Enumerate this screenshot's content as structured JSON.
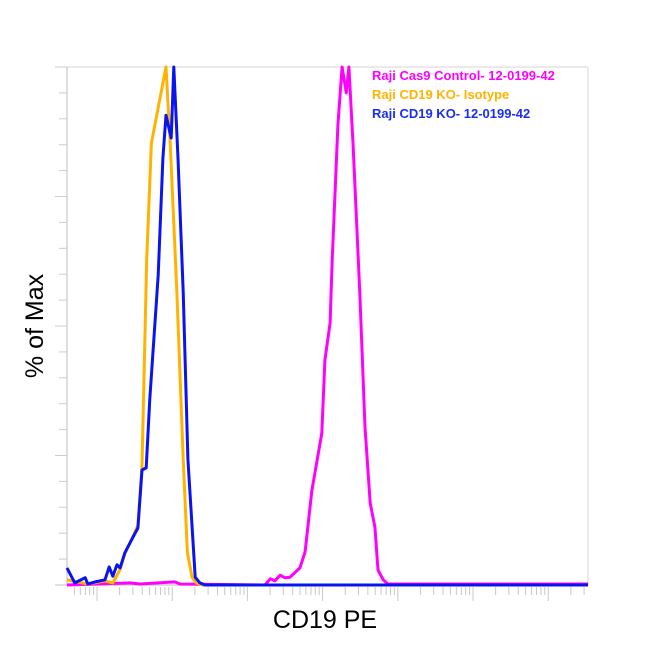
{
  "chart_data": {
    "type": "line",
    "title": "",
    "xlabel": "CD19 PE",
    "ylabel": "% of Max",
    "x_scale": "log",
    "x_units": "fraction of axis range (axis has no printed tick labels)",
    "xlim": [
      0,
      1
    ],
    "ylim": [
      0,
      100
    ],
    "grid": false,
    "legend_position": "top-right",
    "series": [
      {
        "name": "Raji Cas9 Control- 12-0199-42",
        "color": "#ff00ff",
        "points": [
          [
            0,
            0
          ],
          [
            0.121,
            0.4
          ],
          [
            0.14,
            0.2
          ],
          [
            0.207,
            0.6
          ],
          [
            0.217,
            0.2
          ],
          [
            0.38,
            0
          ],
          [
            0.39,
            1.2
          ],
          [
            0.399,
            0.8
          ],
          [
            0.409,
            1.9
          ],
          [
            0.418,
            1.4
          ],
          [
            0.428,
            1.5
          ],
          [
            0.447,
            3.3
          ],
          [
            0.457,
            6.4
          ],
          [
            0.47,
            18.3
          ],
          [
            0.489,
            29.3
          ],
          [
            0.495,
            43.4
          ],
          [
            0.505,
            50.6
          ],
          [
            0.509,
            62.7
          ],
          [
            0.52,
            88.8
          ],
          [
            0.528,
            100
          ],
          [
            0.536,
            95
          ],
          [
            0.541,
            100
          ],
          [
            0.549,
            85.3
          ],
          [
            0.562,
            56.4
          ],
          [
            0.572,
            30.5
          ],
          [
            0.582,
            15.8
          ],
          [
            0.591,
            11.2
          ],
          [
            0.597,
            2.9
          ],
          [
            0.607,
            1.0
          ],
          [
            0.616,
            0.2
          ],
          [
            1,
            0.2
          ]
        ]
      },
      {
        "name": "Raji CD19 KO- Isotype",
        "color": "#ffb300",
        "points": [
          [
            0,
            1
          ],
          [
            0.04,
            0.2
          ],
          [
            0.073,
            0.8
          ],
          [
            0.088,
            0.4
          ],
          [
            0.102,
            3
          ],
          [
            0.111,
            6
          ],
          [
            0.127,
            9.5
          ],
          [
            0.136,
            11.5
          ],
          [
            0.144,
            23
          ],
          [
            0.153,
            62.9
          ],
          [
            0.162,
            85.3
          ],
          [
            0.19,
            100
          ],
          [
            0.198,
            85.3
          ],
          [
            0.211,
            56.4
          ],
          [
            0.223,
            24.3
          ],
          [
            0.231,
            6.2
          ],
          [
            0.24,
            1.5
          ],
          [
            0.248,
            0.4
          ],
          [
            0.26,
            0
          ],
          [
            1,
            0
          ]
        ]
      },
      {
        "name": "Raji CD19 KO- 12-0199-42",
        "color": "#0a14f0",
        "points": [
          [
            0,
            3.3
          ],
          [
            0.015,
            0.4
          ],
          [
            0.035,
            1.4
          ],
          [
            0.04,
            0.2
          ],
          [
            0.054,
            0.6
          ],
          [
            0.073,
            1.0
          ],
          [
            0.081,
            3.5
          ],
          [
            0.088,
            1.7
          ],
          [
            0.096,
            3.9
          ],
          [
            0.102,
            3.3
          ],
          [
            0.111,
            6.2
          ],
          [
            0.127,
            9.3
          ],
          [
            0.136,
            11.0
          ],
          [
            0.144,
            22.2
          ],
          [
            0.152,
            22.6
          ],
          [
            0.159,
            35.9
          ],
          [
            0.175,
            59.8
          ],
          [
            0.184,
            82.4
          ],
          [
            0.19,
            90.7
          ],
          [
            0.2,
            86.3
          ],
          [
            0.205,
            100
          ],
          [
            0.213,
            82.4
          ],
          [
            0.223,
            56.6
          ],
          [
            0.232,
            24.3
          ],
          [
            0.246,
            1.5
          ],
          [
            0.255,
            0.4
          ],
          [
            0.265,
            0
          ],
          [
            1,
            0
          ]
        ]
      }
    ]
  }
}
